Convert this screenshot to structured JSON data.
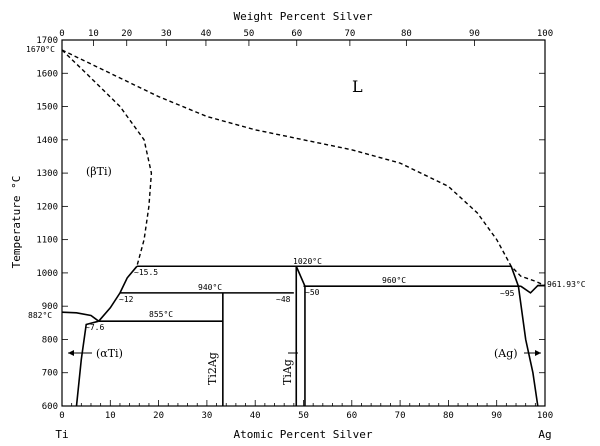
{
  "title_top": "Weight Percent Silver",
  "xlabel": "Atomic Percent Silver",
  "ylabel": "Temperature °C",
  "x_end_left": "Ti",
  "x_end_right": "Ag",
  "bottom_ticks": [
    "0",
    "10",
    "20",
    "30",
    "40",
    "50",
    "60",
    "70",
    "80",
    "90",
    "100"
  ],
  "top_ticks": [
    "0",
    "10",
    "20",
    "30",
    "40",
    "50",
    "60",
    "70",
    "80",
    "90",
    "100"
  ],
  "top_tick_positions_at": [
    0,
    6.5,
    13.4,
    21.6,
    29.8,
    38.7,
    48.6,
    59.6,
    71.3,
    85.4,
    100
  ],
  "y_ticks": [
    "600",
    "700",
    "800",
    "900",
    "1000",
    "1100",
    "1200",
    "1300",
    "1400",
    "1500",
    "1600",
    "1700"
  ],
  "phases": {
    "liquid": "L",
    "beta_ti": "(βTi)",
    "alpha_ti": "(αTi)",
    "ag": "(Ag)",
    "ti2ag": "Ti2Ag",
    "tiag": "TiAg"
  },
  "points": {
    "ti_melt": "1670°C",
    "ti_transition": "882°C",
    "ag_melt": "961.93°C",
    "eut_1020": "1020°C",
    "eut_960": "960°C",
    "per_940": "940°C",
    "eut_855": "855°C",
    "c_15_5": "~15.5",
    "c_12": "~12",
    "c_7_6": "~7.6",
    "c_48": "~48",
    "c_50": "~50",
    "c_95": "~95"
  },
  "chart_data": {
    "type": "phase-diagram",
    "x_range": [
      0,
      100
    ],
    "y_range": [
      600,
      1700
    ],
    "invariants": [
      {
        "label": "1020°C",
        "T": 1020,
        "x_from": 15.5,
        "x_to": 93
      },
      {
        "label": "960°C",
        "T": 960,
        "x_from": 50,
        "x_to": 95
      },
      {
        "label": "940°C",
        "T": 940,
        "x_from": 12,
        "x_to": 48
      },
      {
        "label": "855°C",
        "T": 855,
        "x_from": 7.6,
        "x_to": 33.3
      }
    ],
    "compounds": [
      {
        "name": "Ti2Ag",
        "x": 33.3,
        "T_max": 940
      },
      {
        "name": "TiAg",
        "x": 48.5,
        "T_max": 1020
      }
    ],
    "liquidus": [
      [
        0,
        1670
      ],
      [
        10,
        1600
      ],
      [
        20,
        1530
      ],
      [
        30,
        1470
      ],
      [
        40,
        1430
      ],
      [
        50,
        1400
      ],
      [
        60,
        1370
      ],
      [
        70,
        1330
      ],
      [
        80,
        1260
      ],
      [
        86,
        1180
      ],
      [
        90,
        1100
      ],
      [
        93,
        1020
      ],
      [
        95,
        990
      ],
      [
        98,
        975
      ],
      [
        100,
        962
      ]
    ],
    "beta_solidus": [
      [
        0,
        1670
      ],
      [
        5,
        1600
      ],
      [
        12,
        1500
      ],
      [
        17,
        1400
      ],
      [
        18.5,
        1300
      ],
      [
        18,
        1200
      ],
      [
        17,
        1100
      ],
      [
        15.5,
        1020
      ]
    ],
    "beta_transus": [
      [
        0,
        882
      ],
      [
        3,
        880
      ],
      [
        6,
        872
      ],
      [
        7.6,
        855
      ]
    ],
    "beta_lower": [
      [
        7.6,
        855
      ],
      [
        10,
        895
      ],
      [
        12,
        940
      ],
      [
        13.5,
        985
      ],
      [
        15.5,
        1020
      ]
    ],
    "alpha_solvus": [
      [
        3,
        600
      ],
      [
        4,
        740
      ],
      [
        5,
        845
      ],
      [
        7.6,
        855
      ]
    ],
    "ag_solidus": [
      [
        93,
        1020
      ],
      [
        94.5,
        960
      ],
      [
        96,
        800
      ],
      [
        97.5,
        700
      ],
      [
        98.5,
        600
      ]
    ],
    "ag_liquidus_edge": [
      [
        95,
        960
      ],
      [
        97,
        940
      ],
      [
        98.5,
        962
      ],
      [
        100,
        962
      ]
    ]
  }
}
